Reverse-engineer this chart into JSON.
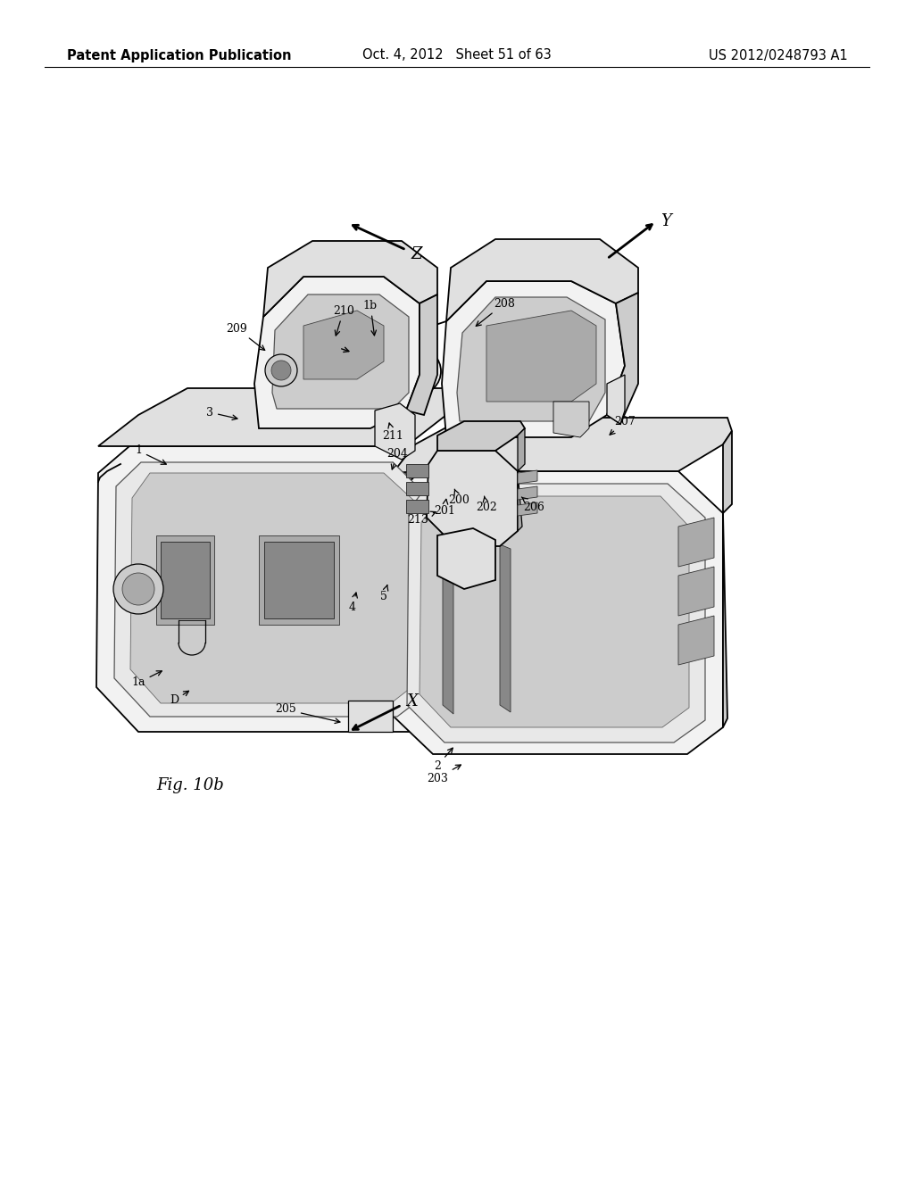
{
  "bg_color": "#ffffff",
  "header_left": "Patent Application Publication",
  "header_center": "Oct. 4, 2012   Sheet 51 of 63",
  "header_right": "US 2012/0248793 A1",
  "figure_label": "Fig. 10b",
  "text_color": "#000000",
  "line_color": "#000000",
  "header_fontsize": 10.5,
  "label_fontsize": 9,
  "figure_label_fontsize": 13
}
